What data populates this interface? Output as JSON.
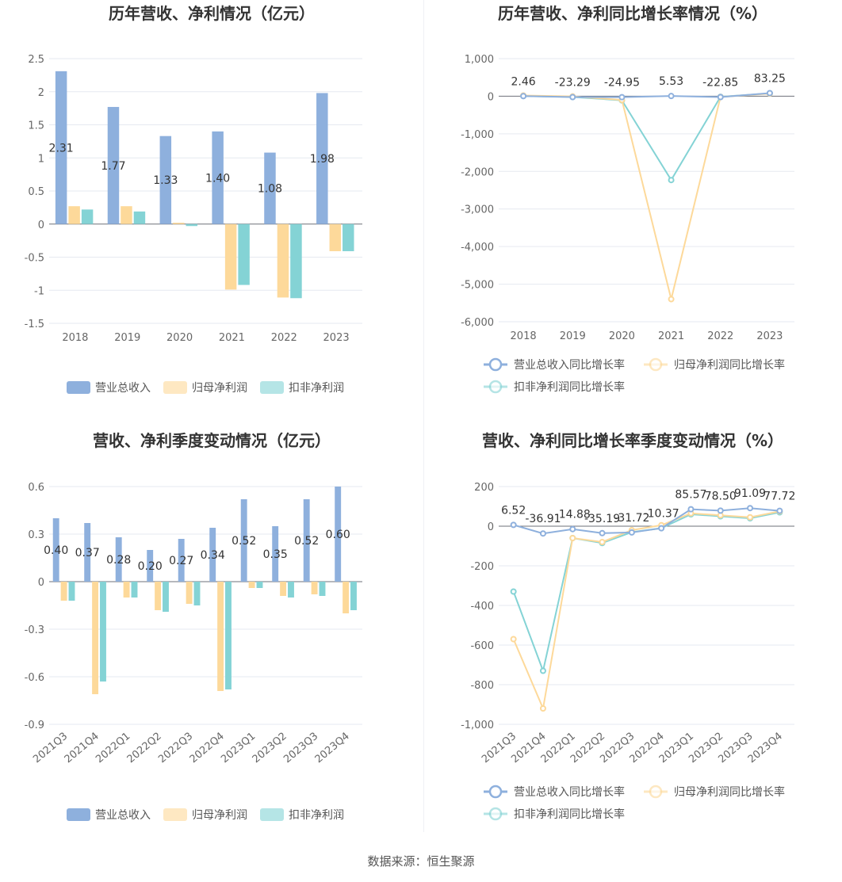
{
  "source_text": "数据来源：恒生聚源",
  "chart_data": [
    {
      "id": "c1",
      "type": "bar",
      "title": "历年营收、净利情况（亿元）",
      "categories": [
        "2018",
        "2019",
        "2020",
        "2021",
        "2022",
        "2023"
      ],
      "yticks": [
        "2.5",
        "2",
        "1.5",
        "1",
        "0.5",
        "0",
        "-0.5",
        "-1",
        "-1.5"
      ],
      "ylim": [
        -1.5,
        2.5
      ],
      "series": [
        {
          "name": "营业总收入",
          "color": "#8eb0dd",
          "values": [
            2.31,
            1.77,
            1.33,
            1.4,
            1.08,
            1.98
          ],
          "labels": [
            "2.31",
            "1.77",
            "1.33",
            "1.40",
            "1.08",
            "1.98"
          ]
        },
        {
          "name": "归母净利润",
          "color": "#fdd99a",
          "values": [
            0.27,
            0.27,
            0.02,
            -0.99,
            -1.11,
            -0.41
          ]
        },
        {
          "name": "扣非净利润",
          "color": "#84d3d5",
          "values": [
            0.22,
            0.19,
            -0.03,
            -0.92,
            -1.12,
            -0.41
          ]
        }
      ],
      "legend": "bottom"
    },
    {
      "id": "c2",
      "type": "line",
      "title": "历年营收、净利同比增长率情况（%）",
      "categories": [
        "2018",
        "2019",
        "2020",
        "2021",
        "2022",
        "2023"
      ],
      "yticks": [
        "1,000",
        "0",
        "-1,000",
        "-2,000",
        "-3,000",
        "-4,000",
        "-5,000",
        "-6,000"
      ],
      "ylim": [
        -6000,
        1000
      ],
      "series": [
        {
          "name": "营业总收入同比增长率",
          "color": "#8eb0dd",
          "values": [
            2.46,
            -23.29,
            -24.95,
            5.53,
            -22.85,
            83.25
          ],
          "labels": [
            "2.46",
            "-23.29",
            "-24.95",
            "5.53",
            "-22.85",
            "83.25"
          ]
        },
        {
          "name": "归母净利润同比增长率",
          "color": "#fdd99a",
          "values": [
            20,
            -5,
            -100,
            -5400,
            -20,
            70
          ]
        },
        {
          "name": "扣非净利润同比增长率",
          "color": "#84d3d5",
          "values": [
            5,
            -20,
            -110,
            -2230,
            -15,
            75
          ]
        }
      ],
      "legend": "bottom"
    },
    {
      "id": "c3",
      "type": "bar",
      "title": "营收、净利季度变动情况（亿元）",
      "categories": [
        "2021Q3",
        "2021Q4",
        "2022Q1",
        "2022Q2",
        "2022Q3",
        "2022Q4",
        "2023Q1",
        "2023Q2",
        "2023Q3",
        "2023Q4"
      ],
      "yticks": [
        "0.6",
        "0.3",
        "0",
        "-0.3",
        "-0.6",
        "-0.9"
      ],
      "ylim": [
        -0.9,
        0.6
      ],
      "series": [
        {
          "name": "营业总收入",
          "color": "#8eb0dd",
          "values": [
            0.4,
            0.37,
            0.28,
            0.2,
            0.27,
            0.34,
            0.52,
            0.35,
            0.52,
            0.6
          ],
          "labels": [
            "0.40",
            "0.37",
            "0.28",
            "0.20",
            "0.27",
            "0.34",
            "0.52",
            "0.35",
            "0.52",
            "0.60"
          ]
        },
        {
          "name": "归母净利润",
          "color": "#fdd99a",
          "values": [
            -0.12,
            -0.71,
            -0.1,
            -0.18,
            -0.14,
            -0.69,
            -0.04,
            -0.09,
            -0.08,
            -0.2
          ]
        },
        {
          "name": "扣非净利润",
          "color": "#84d3d5",
          "values": [
            -0.12,
            -0.63,
            -0.1,
            -0.19,
            -0.15,
            -0.68,
            -0.04,
            -0.1,
            -0.09,
            -0.18
          ]
        }
      ],
      "legend": "bottom"
    },
    {
      "id": "c4",
      "type": "line",
      "title": "营收、净利同比增长率季度变动情况（%）",
      "categories": [
        "2021Q3",
        "2021Q4",
        "2022Q1",
        "2022Q2",
        "2022Q3",
        "2022Q4",
        "2023Q1",
        "2023Q2",
        "2023Q3",
        "2023Q4"
      ],
      "yticks": [
        "200",
        "0",
        "-200",
        "-400",
        "-600",
        "-800",
        "-1,000"
      ],
      "ylim": [
        -1000,
        200
      ],
      "series": [
        {
          "name": "营业总收入同比增长率",
          "color": "#8eb0dd",
          "values": [
            6.52,
            -36.91,
            -14.88,
            -35.19,
            -31.72,
            -10.37,
            85.57,
            78.5,
            91.09,
            77.72
          ],
          "labels": [
            "6.52",
            "-36.91",
            "-14.88",
            "-35.19",
            "-31.72",
            "-10.37",
            "85.57",
            "78.50",
            "91.09",
            "77.72"
          ]
        },
        {
          "name": "归母净利润同比增长率",
          "color": "#fdd99a",
          "values": [
            -570,
            -920,
            -60,
            -80,
            -20,
            5,
            65,
            55,
            45,
            75
          ]
        },
        {
          "name": "扣非净利润同比增长率",
          "color": "#84d3d5",
          "values": [
            -330,
            -730,
            -60,
            -85,
            -30,
            -10,
            60,
            50,
            40,
            70
          ]
        }
      ],
      "legend": "bottom"
    }
  ]
}
